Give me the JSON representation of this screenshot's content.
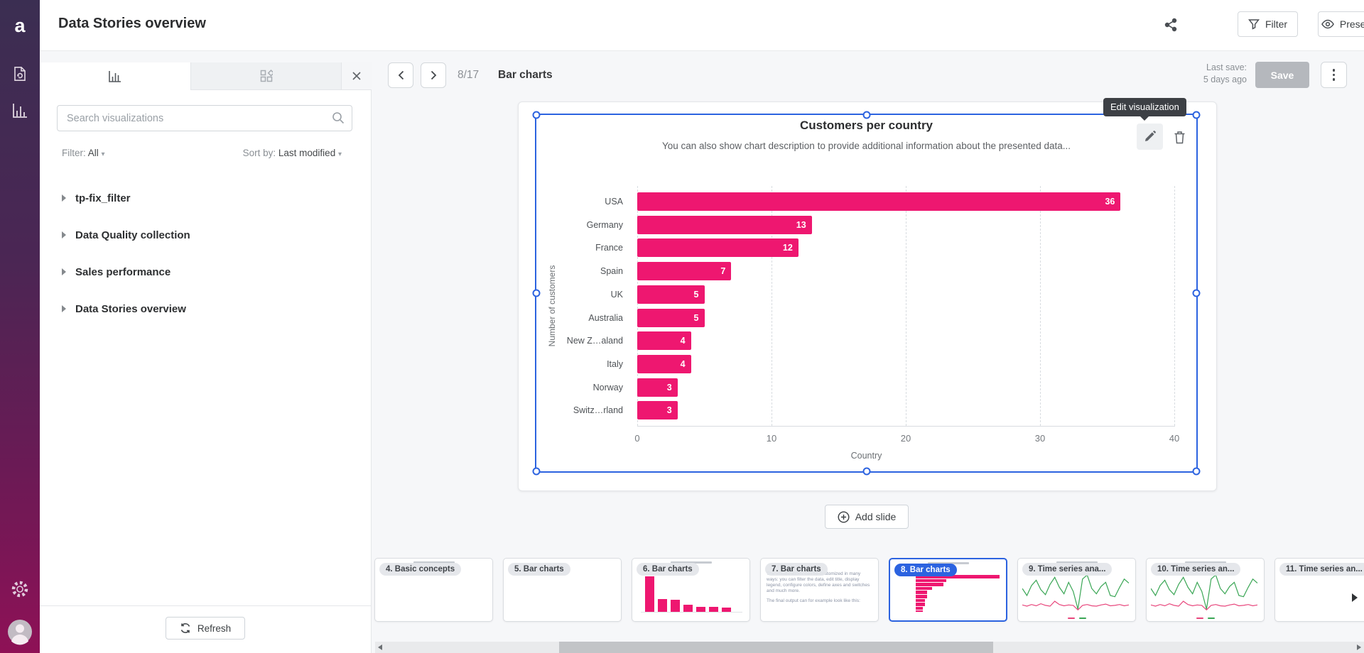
{
  "brand": {
    "logo_letter": "a"
  },
  "header": {
    "title": "Data Stories overview",
    "filter_button": "Filter",
    "present_button": "Present"
  },
  "slide_nav": {
    "page_indicator": "8/17",
    "slide_title": "Bar charts",
    "last_save_label": "Last save:",
    "last_save_value": "5 days ago",
    "save_button": "Save"
  },
  "sidebar": {
    "search_placeholder": "Search visualizations",
    "filter_label": "Filter:",
    "filter_value": "All",
    "sort_label": "Sort by:",
    "sort_value": "Last modified",
    "groups": [
      "tp-fix_filter",
      "Data Quality collection",
      "Sales performance",
      "Data Stories overview"
    ],
    "refresh_button": "Refresh"
  },
  "slide": {
    "tooltip": "Edit visualization",
    "add_slide_button": "Add slide"
  },
  "chart_data": {
    "type": "bar",
    "orientation": "horizontal",
    "title": "Customers per country",
    "subtitle": "You can also show chart description to provide additional information about the presented data...",
    "categories": [
      "USA",
      "Germany",
      "France",
      "Spain",
      "UK",
      "Australia",
      "New Z…aland",
      "Italy",
      "Norway",
      "Switz…rland"
    ],
    "values": [
      36,
      13,
      12,
      7,
      5,
      5,
      4,
      4,
      3,
      3
    ],
    "xlabel": "Country",
    "ylabel": "Number of customers",
    "xlim": [
      0,
      40
    ],
    "xticks": [
      0,
      10,
      20,
      30,
      40
    ],
    "grid": "dashed-vertical",
    "legend": "none",
    "bar_color": "#ee1770",
    "value_label_color": "#ffffff"
  },
  "filmstrip": {
    "items": [
      {
        "label": "4. Basic concepts",
        "kind": "blank",
        "selected": false,
        "smudge_title": true
      },
      {
        "label": "5. Bar charts",
        "kind": "blank",
        "selected": false,
        "smudge_title": false
      },
      {
        "label": "6. Bar charts",
        "kind": "vbar",
        "selected": false,
        "smudge_title": true,
        "mini_values": [
          36,
          13,
          12,
          7,
          5,
          5,
          4
        ]
      },
      {
        "label": "7. Bar charts",
        "kind": "text",
        "selected": false,
        "smudge_title": false,
        "body_text": "The visualizations can be customized in many ways: you can filter the data, edit title, display legend, configure colors, define axes and switches and much more.",
        "body_text2": "The final output can for example look like this:"
      },
      {
        "label": "8. Bar charts",
        "kind": "hbar",
        "selected": true,
        "smudge_title": true,
        "mini_values": [
          36,
          13,
          12,
          7,
          5,
          5,
          4,
          4,
          3,
          3
        ]
      },
      {
        "label": "9. Time series ana...",
        "kind": "line",
        "selected": false,
        "smudge_title": true
      },
      {
        "label": "10. Time series an...",
        "kind": "line",
        "selected": false,
        "smudge_title": true
      },
      {
        "label": "11. Time series an...",
        "kind": "blank",
        "selected": false,
        "smudge_title": false
      }
    ],
    "line_series": {
      "green": [
        45,
        62,
        38,
        25,
        48,
        60,
        35,
        18,
        42,
        58,
        30,
        52,
        95,
        22,
        12,
        45,
        58,
        40,
        30,
        62,
        65,
        42,
        22,
        32
      ],
      "pink": [
        85,
        88,
        84,
        87,
        82,
        86,
        88,
        76,
        84,
        87,
        85,
        86,
        97,
        86,
        84,
        87,
        88,
        85,
        83,
        87,
        86,
        84,
        87,
        85
      ],
      "green_color": "#3aa655",
      "pink_color": "#e8467c"
    }
  }
}
